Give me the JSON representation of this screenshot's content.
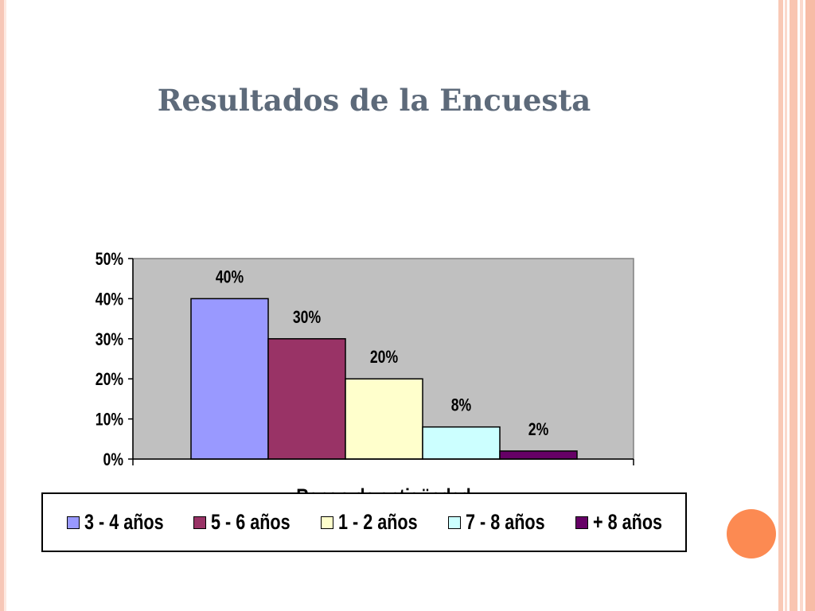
{
  "slide": {
    "title": "Resultados de la Encuesta"
  },
  "theme": {
    "accent": "#fc8a52",
    "plot_bg": "#c0c0c0",
    "title_color": "#5d6a7a"
  },
  "chart_data": {
    "type": "bar",
    "xlabel": "Rango de antigüedad",
    "ylabel": "",
    "ylim": [
      0,
      50
    ],
    "yticks": [
      "0%",
      "10%",
      "20%",
      "30%",
      "40%",
      "50%"
    ],
    "grid": false,
    "legend_position": "bottom",
    "series": [
      {
        "name": "3 - 4 años",
        "value": 40,
        "label": "40%",
        "color": "#9999ff"
      },
      {
        "name": "5 - 6 años",
        "value": 30,
        "label": "30%",
        "color": "#993366"
      },
      {
        "name": "1 - 2 años",
        "value": 20,
        "label": "20%",
        "color": "#ffffcc"
      },
      {
        "name": "7 - 8 años",
        "value": 8,
        "label": "8%",
        "color": "#ccffff"
      },
      {
        "name": "+ 8 años",
        "value": 2,
        "label": "2%",
        "color": "#660066"
      }
    ]
  }
}
